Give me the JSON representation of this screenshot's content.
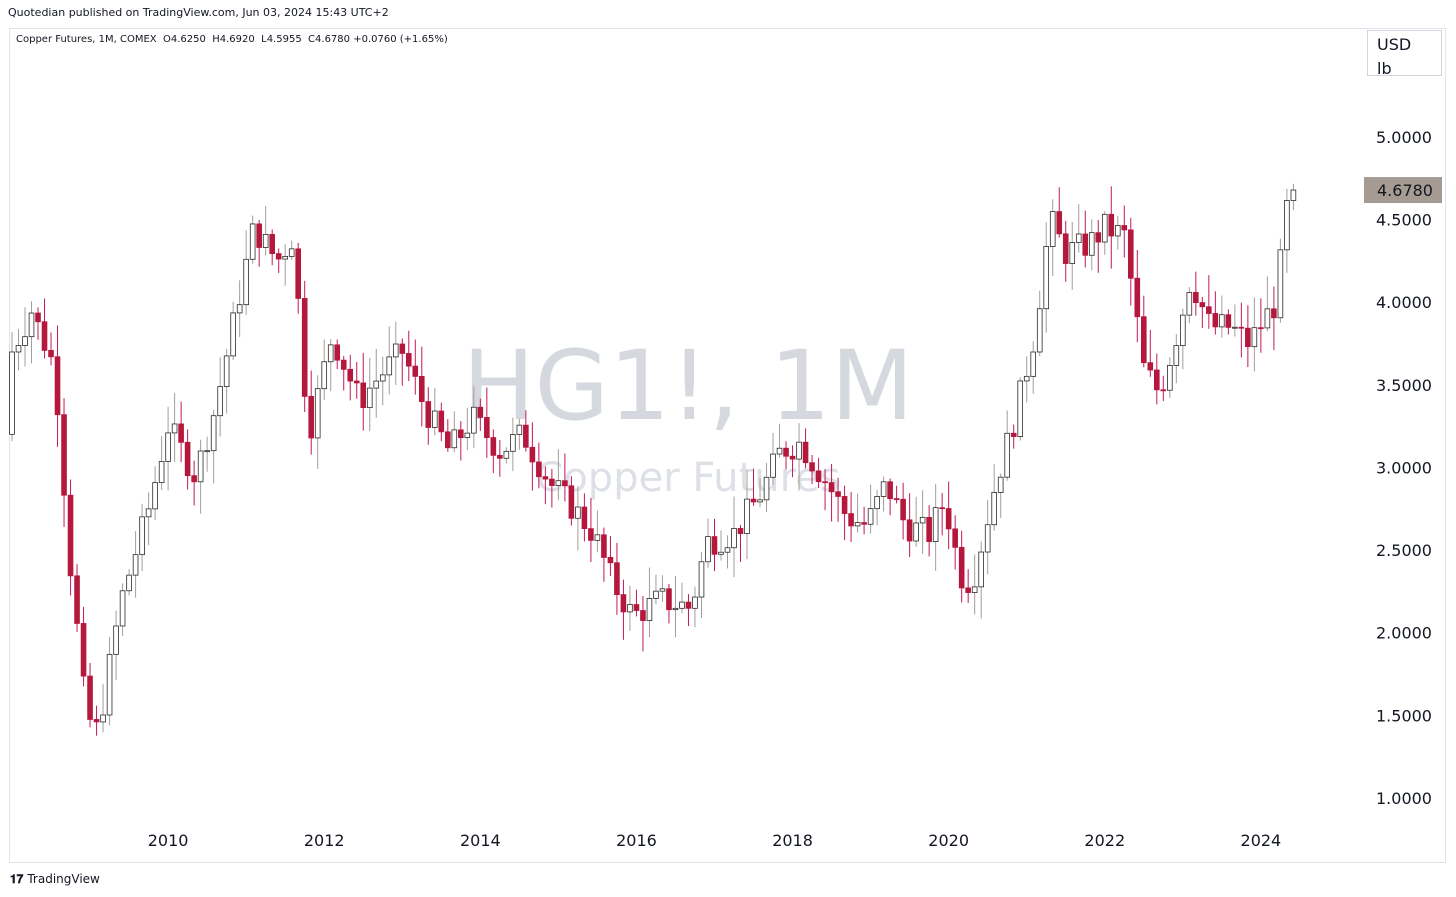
{
  "header": {
    "publisher": "Quotedian published on TradingView.com, Jun 03, 2024 15:43 UTC+2"
  },
  "symbol": {
    "name": "Copper Futures, 1M, COMEX",
    "open": "O4.6250",
    "high": "H4.6920",
    "low": "L4.5955",
    "close": "C4.6780",
    "change": "+0.0760 (+1.65%)"
  },
  "unit": {
    "currency": "USD",
    "measure": "lb"
  },
  "watermark": {
    "ticker": "HG1!, 1M",
    "description": "Copper Futures"
  },
  "footer": {
    "brand": "TradingView",
    "logo_icon": "tradingview-logo-icon"
  },
  "colors": {
    "up": "#ffffff",
    "down": "#b5173d",
    "up_border": "#2a2a2a",
    "wick_up": "#a49d97",
    "wick_down": "#c2185b",
    "last_price_bg": "#a69b92"
  },
  "chart_data": {
    "type": "candlestick",
    "timeframe": "1M",
    "y_axis": {
      "ticks": [
        "1.0000",
        "1.5000",
        "2.0000",
        "2.5000",
        "3.0000",
        "3.5000",
        "4.0000",
        "4.5000",
        "5.0000"
      ],
      "range": [
        0.85,
        5.2
      ]
    },
    "x_axis": {
      "ticks": [
        "2010",
        "2012",
        "2014",
        "2016",
        "2018",
        "2020",
        "2022",
        "2024"
      ],
      "start_year": 2008.0,
      "end_year": 2024.45
    },
    "last_price": "4.6780",
    "anchors": [
      [
        2008.0,
        3.7
      ],
      [
        2008.25,
        3.95
      ],
      [
        2008.55,
        3.6
      ],
      [
        2008.75,
        2.4
      ],
      [
        2008.95,
        1.5
      ],
      [
        2009.1,
        1.4
      ],
      [
        2009.4,
        2.2
      ],
      [
        2009.75,
        2.75
      ],
      [
        2010.0,
        3.25
      ],
      [
        2010.35,
        2.95
      ],
      [
        2010.6,
        3.35
      ],
      [
        2010.85,
        3.9
      ],
      [
        2011.1,
        4.45
      ],
      [
        2011.4,
        4.25
      ],
      [
        2011.6,
        4.4
      ],
      [
        2011.8,
        3.2
      ],
      [
        2012.1,
        3.8
      ],
      [
        2012.45,
        3.4
      ],
      [
        2012.7,
        3.55
      ],
      [
        2013.0,
        3.7
      ],
      [
        2013.3,
        3.35
      ],
      [
        2013.6,
        3.1
      ],
      [
        2013.9,
        3.3
      ],
      [
        2014.25,
        3.1
      ],
      [
        2014.55,
        3.2
      ],
      [
        2014.9,
        2.9
      ],
      [
        2015.2,
        2.75
      ],
      [
        2015.45,
        2.6
      ],
      [
        2015.7,
        2.3
      ],
      [
        2015.95,
        2.1
      ],
      [
        2016.3,
        2.2
      ],
      [
        2016.7,
        2.15
      ],
      [
        2016.9,
        2.55
      ],
      [
        2017.25,
        2.6
      ],
      [
        2017.6,
        2.85
      ],
      [
        2017.85,
        3.1
      ],
      [
        2018.1,
        3.15
      ],
      [
        2018.45,
        2.9
      ],
      [
        2018.7,
        2.7
      ],
      [
        2018.95,
        2.65
      ],
      [
        2019.2,
        2.9
      ],
      [
        2019.45,
        2.65
      ],
      [
        2019.75,
        2.6
      ],
      [
        2019.95,
        2.8
      ],
      [
        2020.15,
        2.35
      ],
      [
        2020.3,
        2.3
      ],
      [
        2020.6,
        2.9
      ],
      [
        2020.85,
        3.3
      ],
      [
        2021.1,
        3.8
      ],
      [
        2021.3,
        4.5
      ],
      [
        2021.5,
        4.3
      ],
      [
        2021.8,
        4.35
      ],
      [
        2022.0,
        4.45
      ],
      [
        2022.25,
        4.4
      ],
      [
        2022.5,
        3.6
      ],
      [
        2022.7,
        3.45
      ],
      [
        2022.95,
        3.85
      ],
      [
        2023.1,
        4.15
      ],
      [
        2023.35,
        3.85
      ],
      [
        2023.6,
        3.85
      ],
      [
        2023.85,
        3.75
      ],
      [
        2024.05,
        3.9
      ],
      [
        2024.2,
        4.0
      ],
      [
        2024.32,
        4.55
      ],
      [
        2024.45,
        4.678
      ]
    ]
  }
}
